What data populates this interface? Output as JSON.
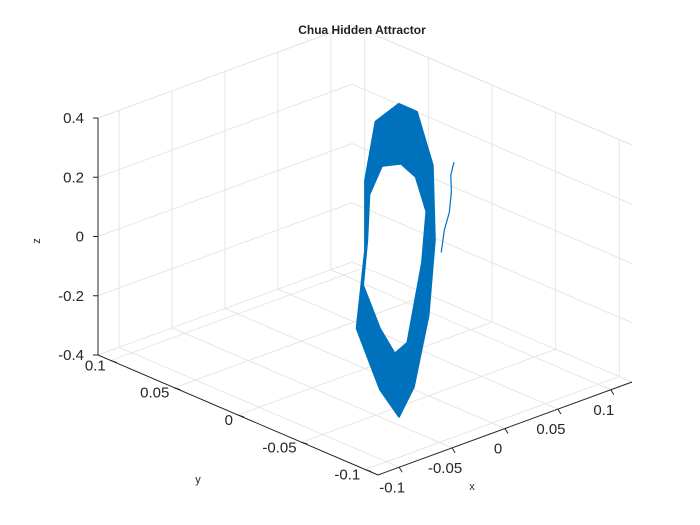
{
  "chart_data": {
    "type": "line",
    "title": "Chua Hidden Attractor",
    "xlabel": "x",
    "ylabel": "y",
    "zlabel": "z",
    "xlim": [
      -0.12,
      0.12
    ],
    "ylim": [
      -0.11,
      0.11
    ],
    "zlim": [
      -0.4,
      0.4
    ],
    "xticks": [
      "-0.1",
      "-0.05",
      "0",
      "0.05",
      "0.1"
    ],
    "yticks": [
      "-0.1",
      "-0.05",
      "0",
      "0.05",
      "0.1"
    ],
    "zticks": [
      "-0.4",
      "-0.2",
      "0",
      "0.2",
      "0.4"
    ],
    "grid": true,
    "box": "3d-view",
    "series": [
      {
        "color": "#0072bd",
        "attractor_ring": {
          "center": [
            0.01,
            -0.015,
            0.0
          ],
          "outer": [
            [
              0.05,
              0.015,
              0.4
            ],
            [
              0.085,
              0.03,
              0.3
            ],
            [
              0.1,
              0.03,
              0.1
            ],
            [
              0.09,
              0.02,
              -0.12
            ],
            [
              0.06,
              0.0,
              -0.3
            ],
            [
              0.01,
              -0.03,
              -0.42
            ],
            [
              -0.04,
              -0.06,
              -0.4
            ],
            [
              -0.07,
              -0.07,
              -0.25
            ],
            [
              -0.08,
              -0.06,
              -0.05
            ],
            [
              -0.06,
              -0.05,
              0.17
            ],
            [
              -0.03,
              -0.025,
              0.32
            ],
            [
              0.01,
              0.0,
              0.42
            ]
          ],
          "inner": [
            [
              0.04,
              0.005,
              0.23
            ],
            [
              0.06,
              0.01,
              0.15
            ],
            [
              0.07,
              0.01,
              0.02
            ],
            [
              0.06,
              0.005,
              -0.13
            ],
            [
              0.04,
              -0.005,
              -0.24
            ],
            [
              0.01,
              -0.025,
              -0.28
            ],
            [
              -0.02,
              -0.04,
              -0.25
            ],
            [
              -0.04,
              -0.045,
              -0.13
            ],
            [
              -0.05,
              -0.04,
              0.02
            ],
            [
              -0.04,
              -0.035,
              0.15
            ],
            [
              -0.02,
              -0.02,
              0.25
            ],
            [
              0.01,
              -0.005,
              0.28
            ]
          ]
        },
        "transient": [
          [
            0.03,
            -0.045,
            0.34
          ],
          [
            0.045,
            -0.03,
            0.25
          ],
          [
            0.06,
            -0.018,
            0.15
          ],
          [
            0.07,
            -0.008,
            0.05
          ],
          [
            0.075,
            0.0,
            -0.03
          ],
          [
            0.078,
            0.005,
            -0.12
          ]
        ]
      }
    ]
  }
}
